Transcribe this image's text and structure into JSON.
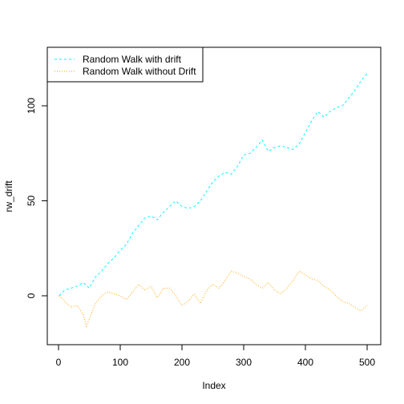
{
  "chart_data": {
    "type": "line",
    "xlabel": "Index",
    "ylabel": "rw_drift",
    "xlim": [
      0,
      500
    ],
    "ylim": [
      -25,
      125
    ],
    "x_ticks": [
      0,
      100,
      200,
      300,
      400,
      500
    ],
    "y_ticks": [
      0,
      50,
      100
    ],
    "grid": false,
    "legend_position": "top-left",
    "series": [
      {
        "name": "Random Walk with drift",
        "color": "#00FFFF",
        "line_style": "dashed",
        "x": [
          1,
          10,
          20,
          30,
          40,
          50,
          60,
          70,
          80,
          90,
          100,
          110,
          120,
          130,
          140,
          150,
          160,
          170,
          180,
          190,
          200,
          210,
          220,
          230,
          240,
          250,
          260,
          270,
          280,
          290,
          300,
          310,
          320,
          330,
          340,
          350,
          360,
          370,
          380,
          390,
          400,
          410,
          420,
          430,
          440,
          450,
          460,
          470,
          480,
          490,
          500
        ],
        "values": [
          0,
          3,
          4,
          5,
          7,
          4,
          10,
          13,
          17,
          20,
          24,
          27,
          33,
          37,
          41,
          42,
          40,
          44,
          47,
          50,
          47,
          46,
          47,
          50,
          55,
          60,
          63,
          65,
          64,
          68,
          74,
          75,
          78,
          82,
          76,
          78,
          79,
          78,
          77,
          80,
          86,
          92,
          97,
          94,
          97,
          99,
          100,
          104,
          108,
          113,
          117
        ]
      },
      {
        "name": "Random Walk without Drift",
        "color": "#FFA500",
        "line_style": "dotted",
        "x": [
          1,
          10,
          20,
          30,
          40,
          45,
          50,
          60,
          70,
          80,
          90,
          100,
          110,
          120,
          130,
          140,
          150,
          160,
          170,
          180,
          190,
          200,
          210,
          220,
          230,
          240,
          250,
          260,
          270,
          280,
          290,
          300,
          310,
          320,
          330,
          340,
          350,
          360,
          370,
          380,
          390,
          400,
          410,
          420,
          430,
          440,
          450,
          460,
          470,
          480,
          490,
          500
        ],
        "values": [
          0,
          -3,
          -6,
          -5,
          -10,
          -16,
          -12,
          -4,
          0,
          2,
          1,
          0,
          -2,
          2,
          6,
          3,
          5,
          -1,
          4,
          4,
          0,
          -5,
          -3,
          1,
          -4,
          3,
          6,
          4,
          8,
          13,
          12,
          10,
          9,
          6,
          4,
          7,
          3,
          1,
          4,
          8,
          13,
          11,
          9,
          8,
          5,
          3,
          0,
          -3,
          -4,
          -6,
          -8,
          -5
        ]
      }
    ]
  }
}
